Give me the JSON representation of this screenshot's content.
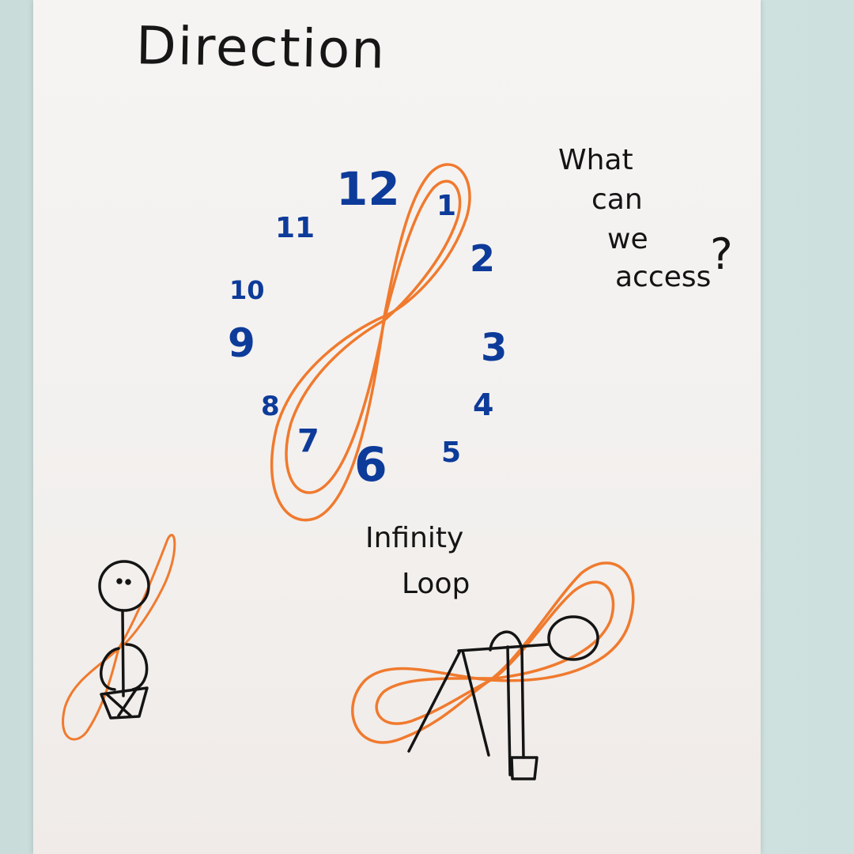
{
  "title": "Direction",
  "clock": {
    "numbers": [
      "12",
      "1",
      "2",
      "3",
      "4",
      "5",
      "6",
      "7",
      "8",
      "9",
      "10",
      "11"
    ]
  },
  "question": {
    "line1": "What",
    "line2": "can",
    "line3": "we",
    "line4": "access",
    "mark": "?"
  },
  "label": {
    "line1": "Infinity",
    "line2": "Loop"
  },
  "colors": {
    "orange": "#f07a2e",
    "blue": "#0d3b9a",
    "black": "#141414"
  }
}
